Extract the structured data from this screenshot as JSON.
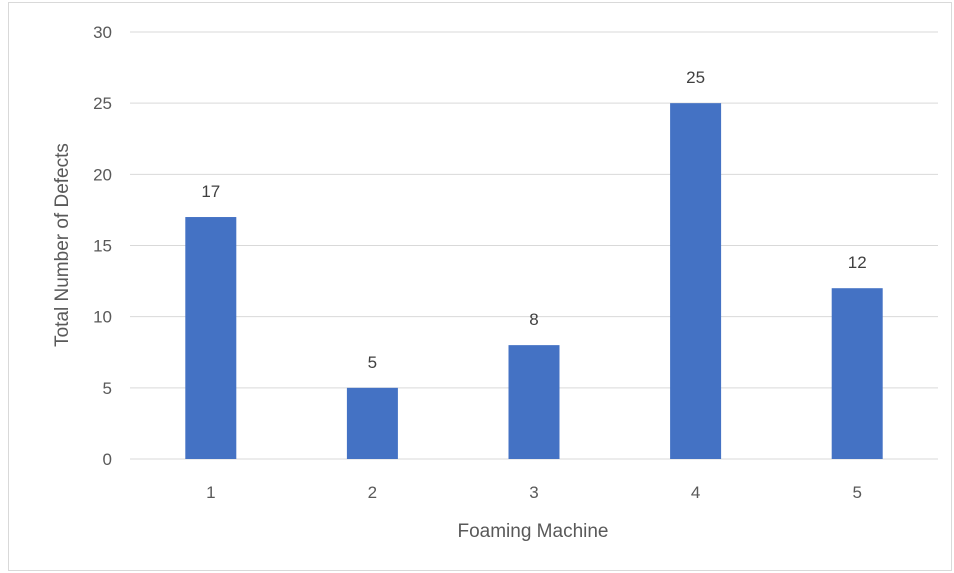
{
  "chart_data": {
    "type": "bar",
    "title": "",
    "xlabel": "Foaming Machine",
    "ylabel": "Total Number of Defects",
    "categories": [
      "1",
      "2",
      "3",
      "4",
      "5"
    ],
    "values": [
      17,
      5,
      8,
      25,
      12
    ],
    "ylim": [
      0,
      30
    ],
    "yticks": [
      0,
      5,
      10,
      15,
      20,
      25,
      30
    ],
    "grid": true,
    "legend": "none",
    "bar_color": "#4472c4",
    "gridline_color": "#d9d9d9"
  }
}
